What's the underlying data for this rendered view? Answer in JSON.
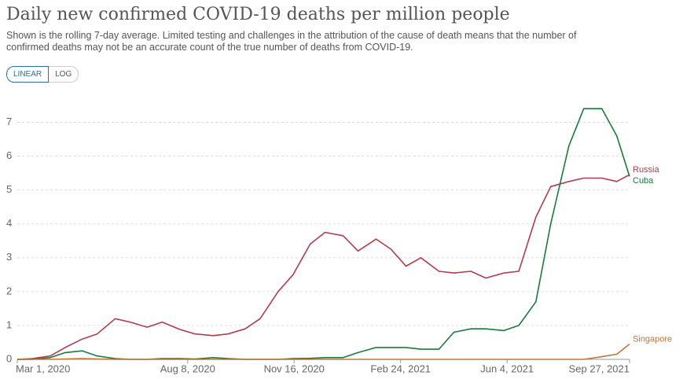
{
  "chart_data": {
    "type": "line",
    "title": "Daily new confirmed COVID-19 deaths per million people",
    "subtitle": "Shown is the rolling 7-day average. Limited testing and challenges in the attribution of the cause of death means that the number of confirmed deaths may not be an accurate count of the true number of deaths from COVID-19.",
    "buttons": [
      "LINEAR",
      "LOG"
    ],
    "x": [
      "2020-03-01",
      "2020-03-15",
      "2020-04-01",
      "2020-04-15",
      "2020-05-01",
      "2020-05-15",
      "2020-06-01",
      "2020-06-15",
      "2020-07-01",
      "2020-07-15",
      "2020-08-01",
      "2020-08-15",
      "2020-09-01",
      "2020-09-15",
      "2020-10-01",
      "2020-10-15",
      "2020-11-01",
      "2020-11-15",
      "2020-12-01",
      "2020-12-15",
      "2021-01-01",
      "2021-01-15",
      "2021-02-01",
      "2021-02-15",
      "2021-03-01",
      "2021-03-15",
      "2021-04-01",
      "2021-04-15",
      "2021-05-01",
      "2021-05-15",
      "2021-06-01",
      "2021-06-15",
      "2021-07-01",
      "2021-07-15",
      "2021-08-01",
      "2021-08-15",
      "2021-09-01",
      "2021-09-15",
      "2021-09-27"
    ],
    "xlim": [
      "2020-03-01",
      "2021-09-27"
    ],
    "xticks": [
      {
        "value": "2020-03-01",
        "label": "Mar 1, 2020"
      },
      {
        "value": "2020-08-08",
        "label": "Aug 8, 2020"
      },
      {
        "value": "2020-11-16",
        "label": "Nov 16, 2020"
      },
      {
        "value": "2021-02-24",
        "label": "Feb 24, 2021"
      },
      {
        "value": "2021-06-04",
        "label": "Jun 4, 2021"
      },
      {
        "value": "2021-09-27",
        "label": "Sep 27, 2021"
      }
    ],
    "ylim": [
      0,
      7.8
    ],
    "yticks": [
      0,
      1,
      2,
      3,
      4,
      5,
      6,
      7
    ],
    "grid": true,
    "series": [
      {
        "name": "Russia",
        "color": "#b13d4f",
        "values": [
          0,
          0.02,
          0.1,
          0.35,
          0.6,
          0.75,
          1.2,
          1.1,
          0.95,
          1.1,
          0.88,
          0.75,
          0.7,
          0.75,
          0.9,
          1.2,
          2.0,
          2.5,
          3.4,
          3.75,
          3.65,
          3.2,
          3.55,
          3.25,
          2.75,
          3.0,
          2.6,
          2.55,
          2.6,
          2.4,
          2.55,
          2.6,
          4.2,
          5.1,
          5.25,
          5.35,
          5.35,
          5.25,
          5.45
        ]
      },
      {
        "name": "Cuba",
        "color": "#1a7a3a",
        "values": [
          0,
          0,
          0.05,
          0.2,
          0.25,
          0.1,
          0.02,
          0,
          0,
          0.02,
          0.02,
          0.01,
          0.05,
          0.02,
          0,
          0,
          0,
          0.02,
          0.03,
          0.05,
          0.05,
          0.2,
          0.35,
          0.35,
          0.35,
          0.3,
          0.3,
          0.8,
          0.9,
          0.9,
          0.85,
          1.0,
          1.7,
          4.0,
          6.3,
          7.4,
          7.4,
          6.6,
          5.4
        ]
      },
      {
        "name": "Singapore",
        "color": "#c0763a",
        "values": [
          0,
          0,
          0,
          0.01,
          0.02,
          0.01,
          0,
          0,
          0,
          0,
          0,
          0,
          0,
          0,
          0,
          0,
          0,
          0,
          0,
          0,
          0,
          0,
          0,
          0,
          0,
          0,
          0,
          0,
          0,
          0,
          0,
          0,
          0,
          0,
          0,
          0,
          0.08,
          0.15,
          0.45
        ]
      }
    ]
  }
}
